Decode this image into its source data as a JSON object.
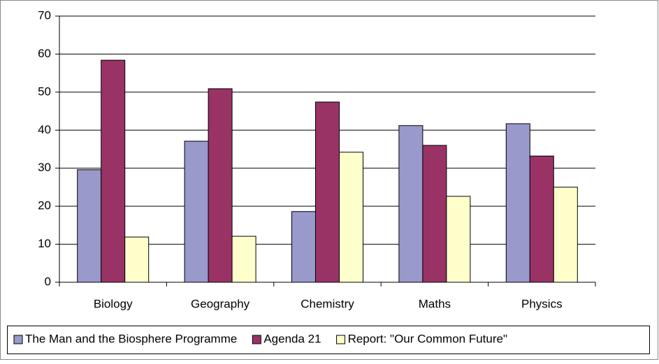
{
  "chart_data": {
    "type": "bar",
    "categories": [
      "Biology",
      "Geography",
      "Chemistry",
      "Maths",
      "Physics"
    ],
    "series": [
      {
        "name": "The Man and the Biosphere Programme",
        "color": "#9999cc",
        "values": [
          29.6,
          37.1,
          18.6,
          41.2,
          41.7
        ]
      },
      {
        "name": "Agenda 21",
        "color": "#993366",
        "values": [
          58.4,
          50.9,
          47.4,
          36.0,
          33.2
        ]
      },
      {
        "name": "Report: \"Our Common Future\"",
        "color": "#ffffcc",
        "values": [
          11.9,
          12.1,
          34.2,
          22.6,
          25.0
        ]
      }
    ],
    "ylim": [
      0,
      70
    ],
    "yticks": [
      0,
      10,
      20,
      30,
      40,
      50,
      60,
      70
    ],
    "grid": true,
    "legend": "bottom"
  }
}
